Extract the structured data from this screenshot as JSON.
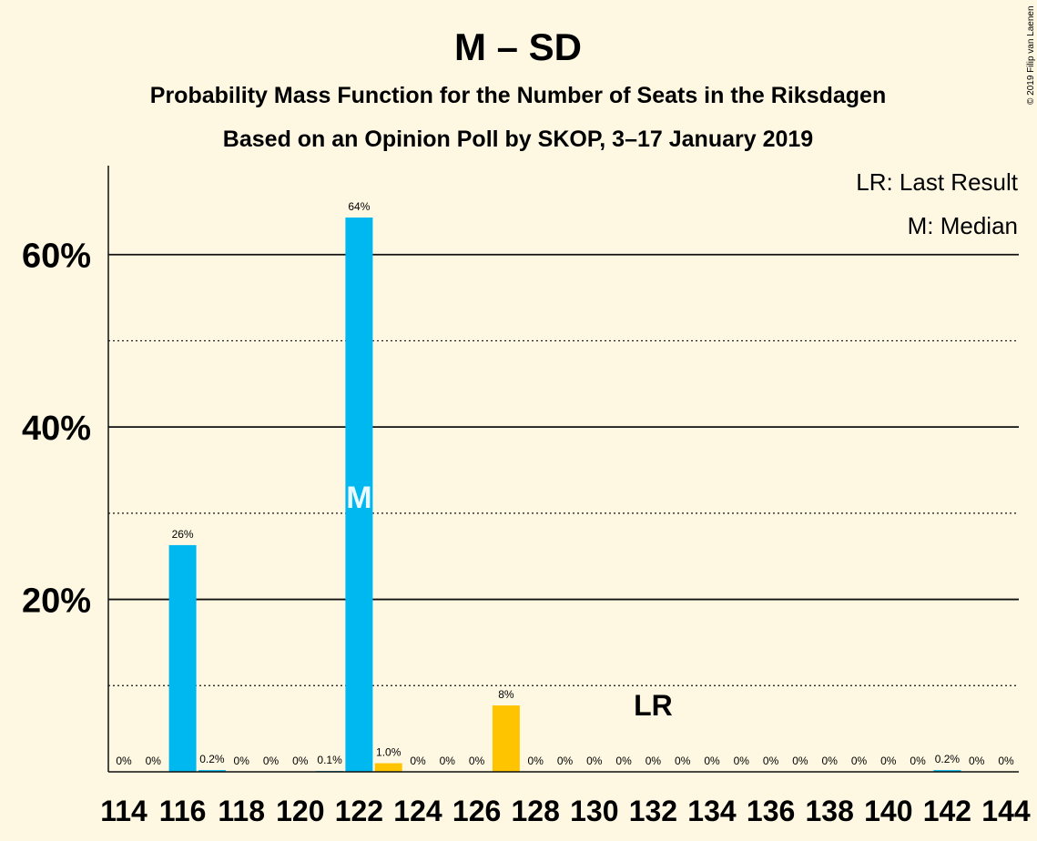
{
  "chart_data": {
    "type": "bar",
    "title": "M – SD",
    "subtitle_1": "Probability Mass Function for the Number of Seats in the Riksdagen",
    "subtitle_2": "Based on an Opinion Poll by SKOP, 3–17 January 2019",
    "copyright": "© 2019 Filip van Laenen",
    "legend": {
      "last_result": "LR: Last Result",
      "median": "M: Median",
      "placement": "top-right"
    },
    "ylim": [
      0,
      70
    ],
    "y_ticks": [
      {
        "value": 20,
        "label": "20%"
      },
      {
        "value": 40,
        "label": "40%"
      },
      {
        "value": 60,
        "label": "60%"
      }
    ],
    "y_minor_gridlines": [
      10,
      30,
      50
    ],
    "x_tick_labels": [
      "114",
      "116",
      "118",
      "120",
      "122",
      "124",
      "126",
      "128",
      "130",
      "132",
      "134",
      "136",
      "138",
      "140",
      "142",
      "144"
    ],
    "categories": [
      114,
      115,
      116,
      117,
      118,
      119,
      120,
      121,
      122,
      123,
      124,
      125,
      126,
      127,
      128,
      129,
      130,
      131,
      132,
      133,
      134,
      135,
      136,
      137,
      138,
      139,
      140,
      141,
      142,
      143,
      144
    ],
    "values": [
      0,
      0,
      26.3,
      0.2,
      0,
      0,
      0,
      0.1,
      64.3,
      1.0,
      0,
      0,
      0,
      7.7,
      0,
      0,
      0,
      0,
      0,
      0,
      0,
      0,
      0,
      0,
      0,
      0,
      0,
      0,
      0.2,
      0,
      0
    ],
    "labels": [
      "0%",
      "0%",
      "26%",
      "0.2%",
      "0%",
      "0%",
      "0%",
      "0.1%",
      "64%",
      "1.0%",
      "0%",
      "0%",
      "0%",
      "8%",
      "0%",
      "0%",
      "0%",
      "0%",
      "0%",
      "0%",
      "0%",
      "0%",
      "0%",
      "0%",
      "0%",
      "0%",
      "0%",
      "0%",
      "0.2%",
      "0%",
      "0%"
    ],
    "highlight_seats": [
      123,
      124,
      125,
      126,
      127
    ],
    "median_seat": 122,
    "median_marker": "M",
    "last_result_seat": 132,
    "last_result_marker": "LR",
    "colors": {
      "bar": "#00b8f0",
      "highlight": "#ffc400",
      "background": "#fef8e3",
      "median_text": "#eafaff"
    }
  }
}
